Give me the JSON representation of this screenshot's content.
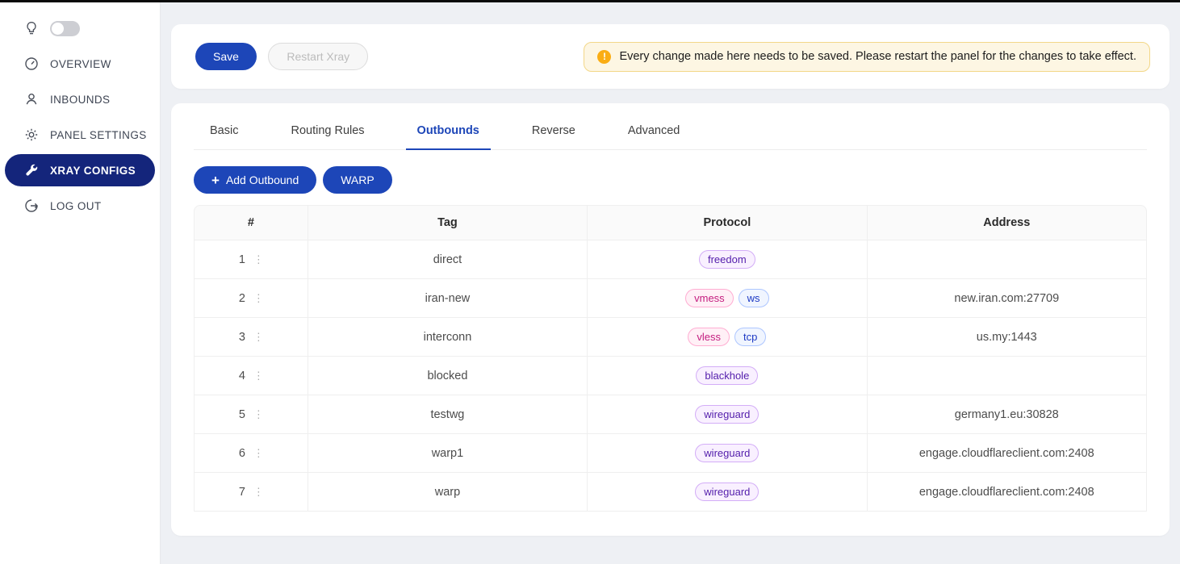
{
  "accent": "#1d46b8",
  "sidebar": {
    "theme_toggle": {
      "state": "off"
    },
    "items": [
      {
        "label": "OVERVIEW"
      },
      {
        "label": "INBOUNDS"
      },
      {
        "label": "PANEL SETTINGS"
      },
      {
        "label": "XRAY CONFIGS",
        "active": true
      },
      {
        "label": "LOG OUT"
      }
    ],
    "active_bg": "#14257b"
  },
  "toolbar": {
    "save_label": "Save",
    "restart_label": "Restart Xray",
    "alert_text": "Every change made here needs to be saved. Please restart the panel for the changes to take effect.",
    "alert_bg": "#fdf6e3",
    "alert_border": "#f3d788",
    "warning_color": "#faad14"
  },
  "tabs": [
    {
      "label": "Basic"
    },
    {
      "label": "Routing Rules"
    },
    {
      "label": "Outbounds",
      "active": true
    },
    {
      "label": "Reverse"
    },
    {
      "label": "Advanced"
    }
  ],
  "actions": {
    "add_outbound_label": "Add Outbound",
    "warp_label": "WARP"
  },
  "table": {
    "columns": [
      "#",
      "Tag",
      "Protocol",
      "Address"
    ],
    "rows": [
      {
        "num": "1",
        "tag": "direct",
        "protocols": [
          {
            "text": "freedom",
            "color": "purple"
          }
        ],
        "address": ""
      },
      {
        "num": "2",
        "tag": "iran-new",
        "protocols": [
          {
            "text": "vmess",
            "color": "magenta"
          },
          {
            "text": "ws",
            "color": "blue"
          }
        ],
        "address": "new.iran.com:27709"
      },
      {
        "num": "3",
        "tag": "interconn",
        "protocols": [
          {
            "text": "vless",
            "color": "magenta"
          },
          {
            "text": "tcp",
            "color": "blue"
          }
        ],
        "address": "us.my:1443"
      },
      {
        "num": "4",
        "tag": "blocked",
        "protocols": [
          {
            "text": "blackhole",
            "color": "purple"
          }
        ],
        "address": ""
      },
      {
        "num": "5",
        "tag": "testwg",
        "protocols": [
          {
            "text": "wireguard",
            "color": "purple"
          }
        ],
        "address": "germany1.eu:30828"
      },
      {
        "num": "6",
        "tag": "warp1",
        "protocols": [
          {
            "text": "wireguard",
            "color": "purple"
          }
        ],
        "address": "engage.cloudflareclient.com:2408"
      },
      {
        "num": "7",
        "tag": "warp",
        "protocols": [
          {
            "text": "wireguard",
            "color": "purple"
          }
        ],
        "address": "engage.cloudflareclient.com:2408"
      }
    ]
  },
  "badge_colors": {
    "magenta": {
      "bg": "#fff0f6",
      "border": "#ffadd2",
      "text": "#c41d7f"
    },
    "purple": {
      "bg": "#f9f0ff",
      "border": "#d3adf7",
      "text": "#531dab"
    },
    "blue": {
      "bg": "#f0f5ff",
      "border": "#adc6ff",
      "text": "#1d39c4"
    }
  }
}
